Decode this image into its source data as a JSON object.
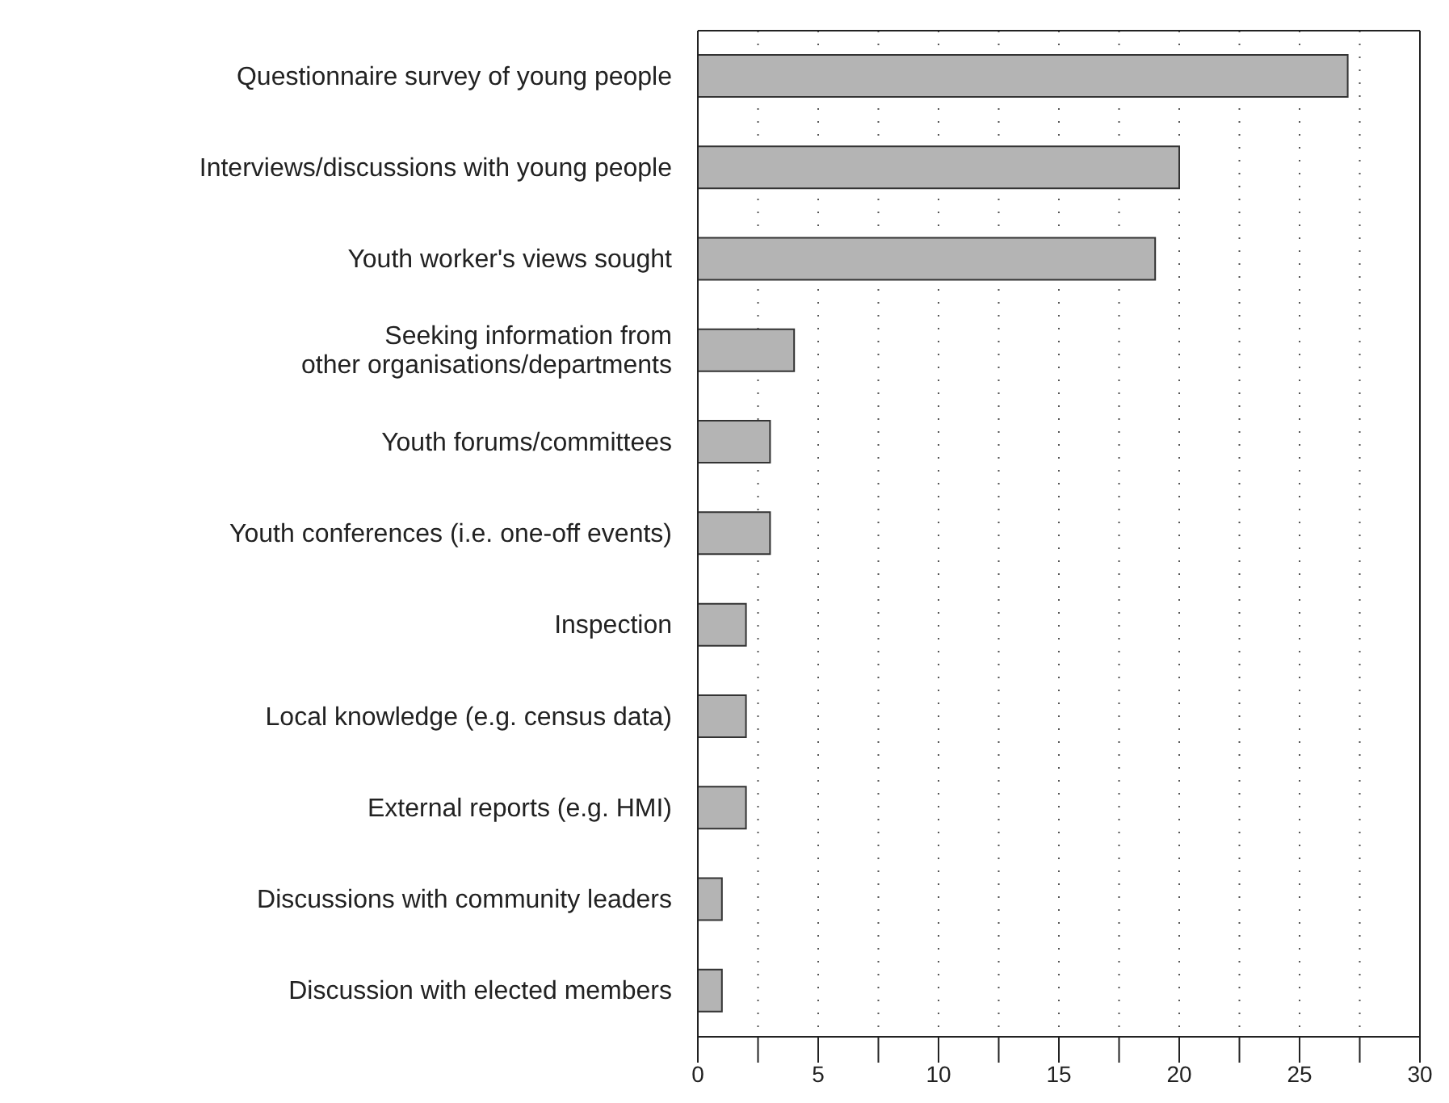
{
  "chart_data": {
    "type": "bar",
    "orientation": "horizontal",
    "categories": [
      "Questionnaire survey of young people",
      "Interviews/discussions with young people",
      "Youth worker's views sought",
      "Seeking information from\nother organisations/departments",
      "Youth forums/committees",
      "Youth conferences (i.e. one-off events)",
      "Inspection",
      "Local knowledge (e.g. census data)",
      "External reports (e.g. HMI)",
      "Discussions with community leaders",
      "Discussion with elected members"
    ],
    "values": [
      27,
      20,
      19,
      4,
      3,
      3,
      2,
      2,
      2,
      1,
      1
    ],
    "color": "#b4b4b4",
    "xlim": [
      0,
      30
    ],
    "xticks": [
      0,
      {
        "value": 2.5,
        "label": null
      },
      5,
      {
        "value": 7.5,
        "label": null
      },
      10,
      {
        "value": 12.5,
        "label": null
      },
      15,
      {
        "value": 17.5,
        "label": null
      },
      20,
      {
        "value": 22.5,
        "label": null
      },
      25,
      {
        "value": 27.5,
        "label": null
      },
      30
    ],
    "grid": "x"
  }
}
